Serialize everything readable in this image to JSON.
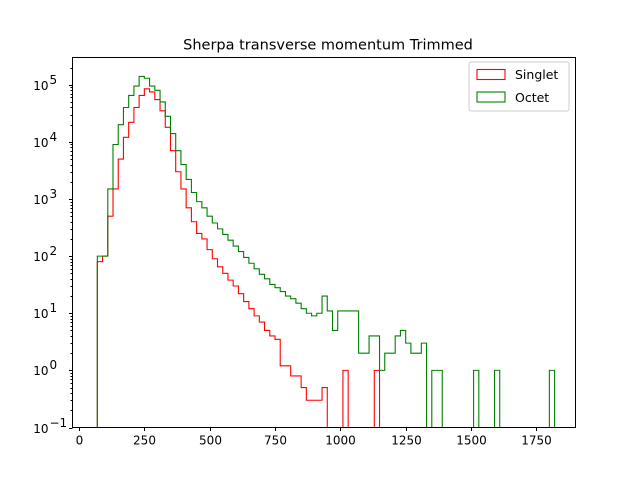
{
  "chart_data": {
    "type": "histogram-step",
    "title": "Sherpa transverse momentum Trimmed",
    "xlabel": "",
    "ylabel": "",
    "xlim": [
      -25,
      1900
    ],
    "ylim": [
      0.1,
      300000
    ],
    "yscale": "log",
    "grid": false,
    "legend_position": "top-right",
    "bin_width": 20,
    "x_ticks": [
      {
        "value": 0,
        "label": "0"
      },
      {
        "value": 250,
        "label": "250"
      },
      {
        "value": 500,
        "label": "500"
      },
      {
        "value": 750,
        "label": "750"
      },
      {
        "value": 1000,
        "label": "1000"
      },
      {
        "value": 1250,
        "label": "1250"
      },
      {
        "value": 1500,
        "label": "1500"
      },
      {
        "value": 1750,
        "label": "1750"
      }
    ],
    "y_ticks": [
      {
        "value": 0.1,
        "base": "10",
        "exp": "−1"
      },
      {
        "value": 1,
        "base": "10",
        "exp": "0"
      },
      {
        "value": 10,
        "base": "10",
        "exp": "1"
      },
      {
        "value": 100,
        "base": "10",
        "exp": "2"
      },
      {
        "value": 1000,
        "base": "10",
        "exp": "3"
      },
      {
        "value": 10000,
        "base": "10",
        "exp": "4"
      },
      {
        "value": 100000,
        "base": "10",
        "exp": "5"
      }
    ],
    "series": [
      {
        "name": "Singlet",
        "color": "#ff0000",
        "bins": [
          [
            70,
            90,
            80
          ],
          [
            90,
            110,
            100
          ],
          [
            110,
            130,
            500
          ],
          [
            130,
            150,
            1500
          ],
          [
            150,
            170,
            5000
          ],
          [
            170,
            190,
            12000
          ],
          [
            190,
            210,
            22000
          ],
          [
            210,
            230,
            40000
          ],
          [
            230,
            250,
            65000
          ],
          [
            250,
            270,
            85000
          ],
          [
            270,
            290,
            75000
          ],
          [
            290,
            310,
            55000
          ],
          [
            310,
            330,
            35000
          ],
          [
            330,
            350,
            18000
          ],
          [
            350,
            370,
            7000
          ],
          [
            370,
            390,
            3000
          ],
          [
            390,
            410,
            1500
          ],
          [
            410,
            430,
            700
          ],
          [
            430,
            450,
            400
          ],
          [
            450,
            470,
            250
          ],
          [
            470,
            490,
            200
          ],
          [
            490,
            510,
            130
          ],
          [
            510,
            530,
            90
          ],
          [
            530,
            550,
            65
          ],
          [
            550,
            570,
            50
          ],
          [
            570,
            590,
            38
          ],
          [
            590,
            610,
            30
          ],
          [
            610,
            630,
            22
          ],
          [
            630,
            650,
            16
          ],
          [
            650,
            670,
            12
          ],
          [
            670,
            690,
            9
          ],
          [
            690,
            710,
            7
          ],
          [
            710,
            730,
            5
          ],
          [
            730,
            750,
            4
          ],
          [
            750,
            770,
            3.5
          ],
          [
            770,
            790,
            1.2
          ],
          [
            790,
            810,
            1.2
          ],
          [
            810,
            830,
            0.8
          ],
          [
            830,
            850,
            0.8
          ],
          [
            850,
            870,
            0.5
          ],
          [
            870,
            890,
            0.3
          ],
          [
            890,
            910,
            0.3
          ],
          [
            910,
            930,
            0.3
          ],
          [
            930,
            950,
            0.5
          ],
          [
            990,
            1010,
            0.1
          ],
          [
            1010,
            1030,
            1
          ],
          [
            1030,
            1050,
            0.1
          ],
          [
            1130,
            1150,
            1
          ]
        ]
      },
      {
        "name": "Octet",
        "color": "#008000",
        "bins": [
          [
            70,
            90,
            100
          ],
          [
            90,
            110,
            100
          ],
          [
            110,
            130,
            1500
          ],
          [
            130,
            150,
            9000
          ],
          [
            150,
            170,
            20000
          ],
          [
            170,
            190,
            40000
          ],
          [
            190,
            210,
            65000
          ],
          [
            210,
            230,
            95000
          ],
          [
            230,
            250,
            140000
          ],
          [
            250,
            270,
            130000
          ],
          [
            270,
            290,
            95000
          ],
          [
            290,
            310,
            80000
          ],
          [
            310,
            330,
            50000
          ],
          [
            330,
            350,
            28000
          ],
          [
            350,
            370,
            14000
          ],
          [
            370,
            390,
            7000
          ],
          [
            390,
            410,
            4000
          ],
          [
            410,
            430,
            2200
          ],
          [
            430,
            450,
            1300
          ],
          [
            450,
            470,
            900
          ],
          [
            470,
            490,
            700
          ],
          [
            490,
            510,
            500
          ],
          [
            510,
            530,
            380
          ],
          [
            530,
            550,
            300
          ],
          [
            550,
            570,
            240
          ],
          [
            570,
            590,
            190
          ],
          [
            590,
            610,
            150
          ],
          [
            610,
            630,
            120
          ],
          [
            630,
            650,
            95
          ],
          [
            650,
            670,
            75
          ],
          [
            670,
            690,
            60
          ],
          [
            690,
            710,
            48
          ],
          [
            710,
            730,
            40
          ],
          [
            730,
            750,
            32
          ],
          [
            750,
            770,
            28
          ],
          [
            770,
            790,
            24
          ],
          [
            790,
            810,
            20
          ],
          [
            810,
            830,
            18
          ],
          [
            830,
            850,
            15
          ],
          [
            850,
            870,
            12
          ],
          [
            870,
            890,
            10
          ],
          [
            890,
            910,
            9
          ],
          [
            910,
            930,
            10
          ],
          [
            930,
            950,
            20
          ],
          [
            950,
            970,
            11
          ],
          [
            970,
            990,
            5
          ],
          [
            990,
            1010,
            11
          ],
          [
            1010,
            1030,
            11
          ],
          [
            1030,
            1050,
            11
          ],
          [
            1050,
            1070,
            11
          ],
          [
            1070,
            1090,
            2
          ],
          [
            1090,
            1110,
            2
          ],
          [
            1110,
            1130,
            4
          ],
          [
            1130,
            1150,
            4
          ],
          [
            1150,
            1170,
            1
          ],
          [
            1170,
            1190,
            2
          ],
          [
            1190,
            1210,
            2
          ],
          [
            1210,
            1230,
            4
          ],
          [
            1230,
            1250,
            5
          ],
          [
            1250,
            1270,
            3
          ],
          [
            1270,
            1290,
            2
          ],
          [
            1290,
            1310,
            2
          ],
          [
            1310,
            1330,
            3
          ],
          [
            1330,
            1350,
            0.1
          ],
          [
            1350,
            1370,
            1
          ],
          [
            1370,
            1390,
            1
          ],
          [
            1510,
            1530,
            1
          ],
          [
            1590,
            1610,
            1
          ],
          [
            1800,
            1820,
            1
          ]
        ]
      }
    ]
  }
}
